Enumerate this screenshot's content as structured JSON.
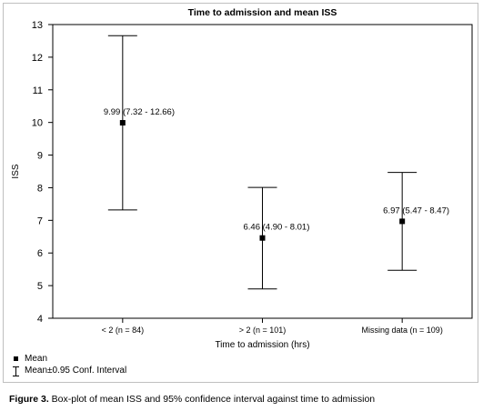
{
  "chart_data": {
    "type": "errorbar",
    "title": "Time to admission and mean ISS",
    "xlabel": "Time to admission (hrs)",
    "ylabel": "ISS",
    "ylim": [
      4,
      13
    ],
    "yticks": [
      4,
      5,
      6,
      7,
      8,
      9,
      10,
      11,
      12,
      13
    ],
    "categories": [
      "< 2 (n = 84)",
      "> 2 (n = 101)",
      "Missing data (n = 109)"
    ],
    "mean": [
      9.99,
      6.46,
      6.97
    ],
    "lower": [
      7.32,
      4.9,
      5.47
    ],
    "upper": [
      12.66,
      8.01,
      8.47
    ],
    "point_labels": [
      "9.99 (7.32 - 12.66)",
      "6.46 (4.90 - 8.01)",
      "6.97 (5.47 - 8.47)"
    ],
    "grid": false,
    "legend_placement": "bottom-left",
    "legend": {
      "mean_label": "Mean",
      "ci_label": "Mean±0.95 Conf. Interval"
    }
  },
  "caption": {
    "label": "Figure 3.",
    "text": " Box-plot of mean ISS and 95% confidence interval against time to admission"
  }
}
